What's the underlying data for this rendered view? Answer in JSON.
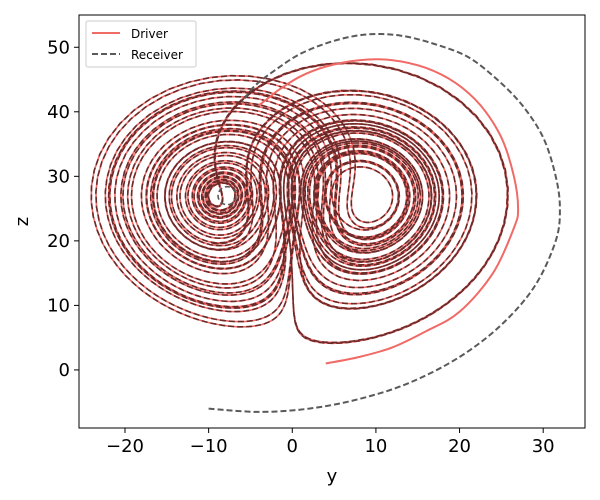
{
  "chart_data": {
    "type": "line",
    "title": "",
    "xlabel": "y",
    "ylabel": "z",
    "xlim": [
      -25.5,
      35
    ],
    "ylim": [
      -9,
      55
    ],
    "xticks": [
      -20,
      -10,
      0,
      10,
      20,
      30
    ],
    "yticks": [
      0,
      10,
      20,
      30,
      40,
      50
    ],
    "xtick_labels": [
      "−20",
      "−10",
      "0",
      "10",
      "20",
      "30"
    ],
    "ytick_labels": [
      "0",
      "10",
      "20",
      "30",
      "40",
      "50"
    ],
    "grid": false,
    "legend_position": "top-left",
    "colors": {
      "driver": "#f06a66",
      "receiver": "#5a5a5a",
      "overlap": "#6b2a2a"
    },
    "series": [
      {
        "name": "Driver",
        "style": "solid",
        "note_points": "initial transient of the driver trajectory before it settles onto the Lorenz attractor",
        "x": [
          4,
          8,
          12,
          16,
          20,
          24,
          26.5,
          27,
          26.5,
          25,
          22.5,
          19.5,
          16,
          12,
          8,
          4,
          1,
          -1.5,
          -3,
          -4
        ],
        "y": [
          1,
          2,
          3.5,
          6,
          9,
          15,
          22,
          25,
          30,
          36,
          41,
          44.5,
          46.8,
          48,
          48,
          47,
          45.5,
          43.5,
          42,
          41
        ]
      },
      {
        "name": "Receiver",
        "style": "dashed",
        "note_points": "initial transient of the receiver trajectory before it synchronizes with the driver",
        "x": [
          -10,
          -4,
          2,
          8,
          14,
          20,
          25,
          29,
          31.5,
          32,
          31.5,
          30,
          27.5,
          24.5,
          21,
          17,
          13,
          9,
          5,
          1,
          -2,
          -4.5,
          -6
        ],
        "y": [
          -6,
          -6.5,
          -6,
          -4.5,
          -2,
          2,
          7,
          13,
          20,
          25,
          30,
          36,
          41,
          45,
          48.5,
          50.5,
          51.8,
          52,
          51,
          49,
          46.5,
          44,
          41.5
        ]
      }
    ]
  }
}
